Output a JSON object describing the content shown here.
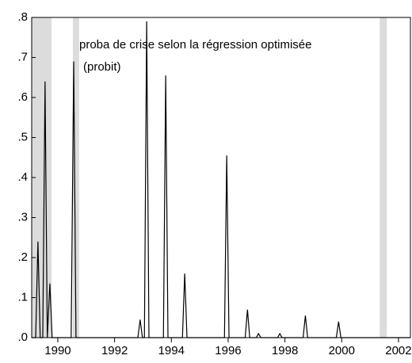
{
  "chart_data": {
    "type": "line",
    "annotation": [
      "proba de crise selon la régression optimisée",
      "(probit)"
    ],
    "x": [
      1989.08,
      1989.22,
      1989.3,
      1989.38,
      1989.47,
      1989.55,
      1989.63,
      1989.72,
      1989.8,
      1990.47,
      1990.56,
      1990.64,
      1992.82,
      1992.9,
      1992.98,
      1993.05,
      1993.13,
      1993.21,
      1993.72,
      1993.8,
      1993.88,
      1994.39,
      1994.47,
      1994.55,
      1995.87,
      1995.95,
      1996.03,
      1996.6,
      1996.68,
      1996.76,
      1996.99,
      1997.07,
      1997.15,
      1997.74,
      1997.82,
      1997.9,
      1998.64,
      1998.72,
      1998.8,
      1999.81,
      1999.89,
      1999.97,
      2002.42
    ],
    "values": [
      0,
      0,
      0.24,
      0,
      0,
      0.64,
      0,
      0.135,
      0,
      0,
      0.69,
      0,
      0,
      0.045,
      0,
      0,
      0.79,
      0,
      0,
      0.655,
      0,
      0,
      0.16,
      0,
      0,
      0.455,
      0,
      0,
      0.07,
      0,
      0,
      0.01,
      0,
      0,
      0.01,
      0,
      0,
      0.055,
      0,
      0,
      0.04,
      0,
      0
    ],
    "color": "#000000",
    "shaded_periods": [
      [
        1989.08,
        1989.78
      ],
      [
        1990.53,
        1990.75
      ],
      [
        2001.34,
        2001.59
      ]
    ],
    "shade_color": "#dcdcdc",
    "xlim": [
      1989.08,
      2002.42
    ],
    "xticks": [
      1990,
      1992,
      1994,
      1996,
      1998,
      2000,
      2002
    ],
    "ylim": [
      0,
      0.8
    ],
    "yticks": [
      {
        "value": 0,
        "label": ".0"
      },
      {
        "value": 0.1,
        "label": ".1"
      },
      {
        "value": 0.2,
        "label": ".2"
      },
      {
        "value": 0.3,
        "label": ".3"
      },
      {
        "value": 0.4,
        "label": ".4"
      },
      {
        "value": 0.5,
        "label": ".5"
      },
      {
        "value": 0.6,
        "label": ".6"
      },
      {
        "value": 0.7,
        "label": ".7"
      },
      {
        "value": 0.8,
        "label": ".8"
      }
    ]
  }
}
